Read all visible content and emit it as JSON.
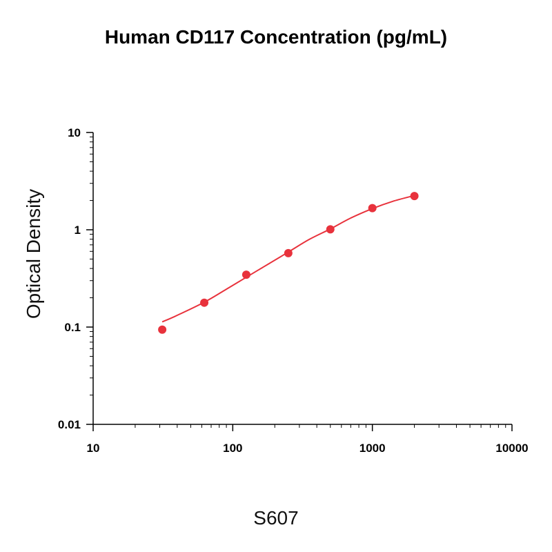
{
  "chart_data": {
    "type": "scatter",
    "title": "Human CD117 Concentration (pg/mL)",
    "xlabel": "S607",
    "ylabel": "Optical Density",
    "x_scale": "log",
    "y_scale": "log",
    "xlim": [
      10,
      10000
    ],
    "ylim": [
      0.01,
      10
    ],
    "x_ticks": [
      10,
      100,
      1000,
      10000
    ],
    "x_tick_labels": [
      "10",
      "100",
      "1000",
      "10000"
    ],
    "y_ticks": [
      0.01,
      0.1,
      1,
      10
    ],
    "y_tick_labels": [
      "0.01",
      "0.1",
      "1",
      "10"
    ],
    "grid": false,
    "legend": "none",
    "series": [
      {
        "x": [
          31.25,
          62.5,
          125,
          250,
          500,
          1000,
          2000
        ],
        "y": [
          0.094,
          0.178,
          0.345,
          0.575,
          1.01,
          1.67,
          2.22
        ]
      }
    ],
    "fit_curve": {
      "type": "line",
      "x": [
        31.25,
        40,
        62.5,
        90,
        125,
        180,
        250,
        350,
        500,
        700,
        1000,
        1400,
        2000
      ],
      "y": [
        0.113,
        0.132,
        0.18,
        0.245,
        0.325,
        0.445,
        0.59,
        0.79,
        1.02,
        1.32,
        1.65,
        1.96,
        2.25
      ]
    },
    "colors": {
      "series": "#e8323c",
      "axes": "#000000"
    }
  }
}
